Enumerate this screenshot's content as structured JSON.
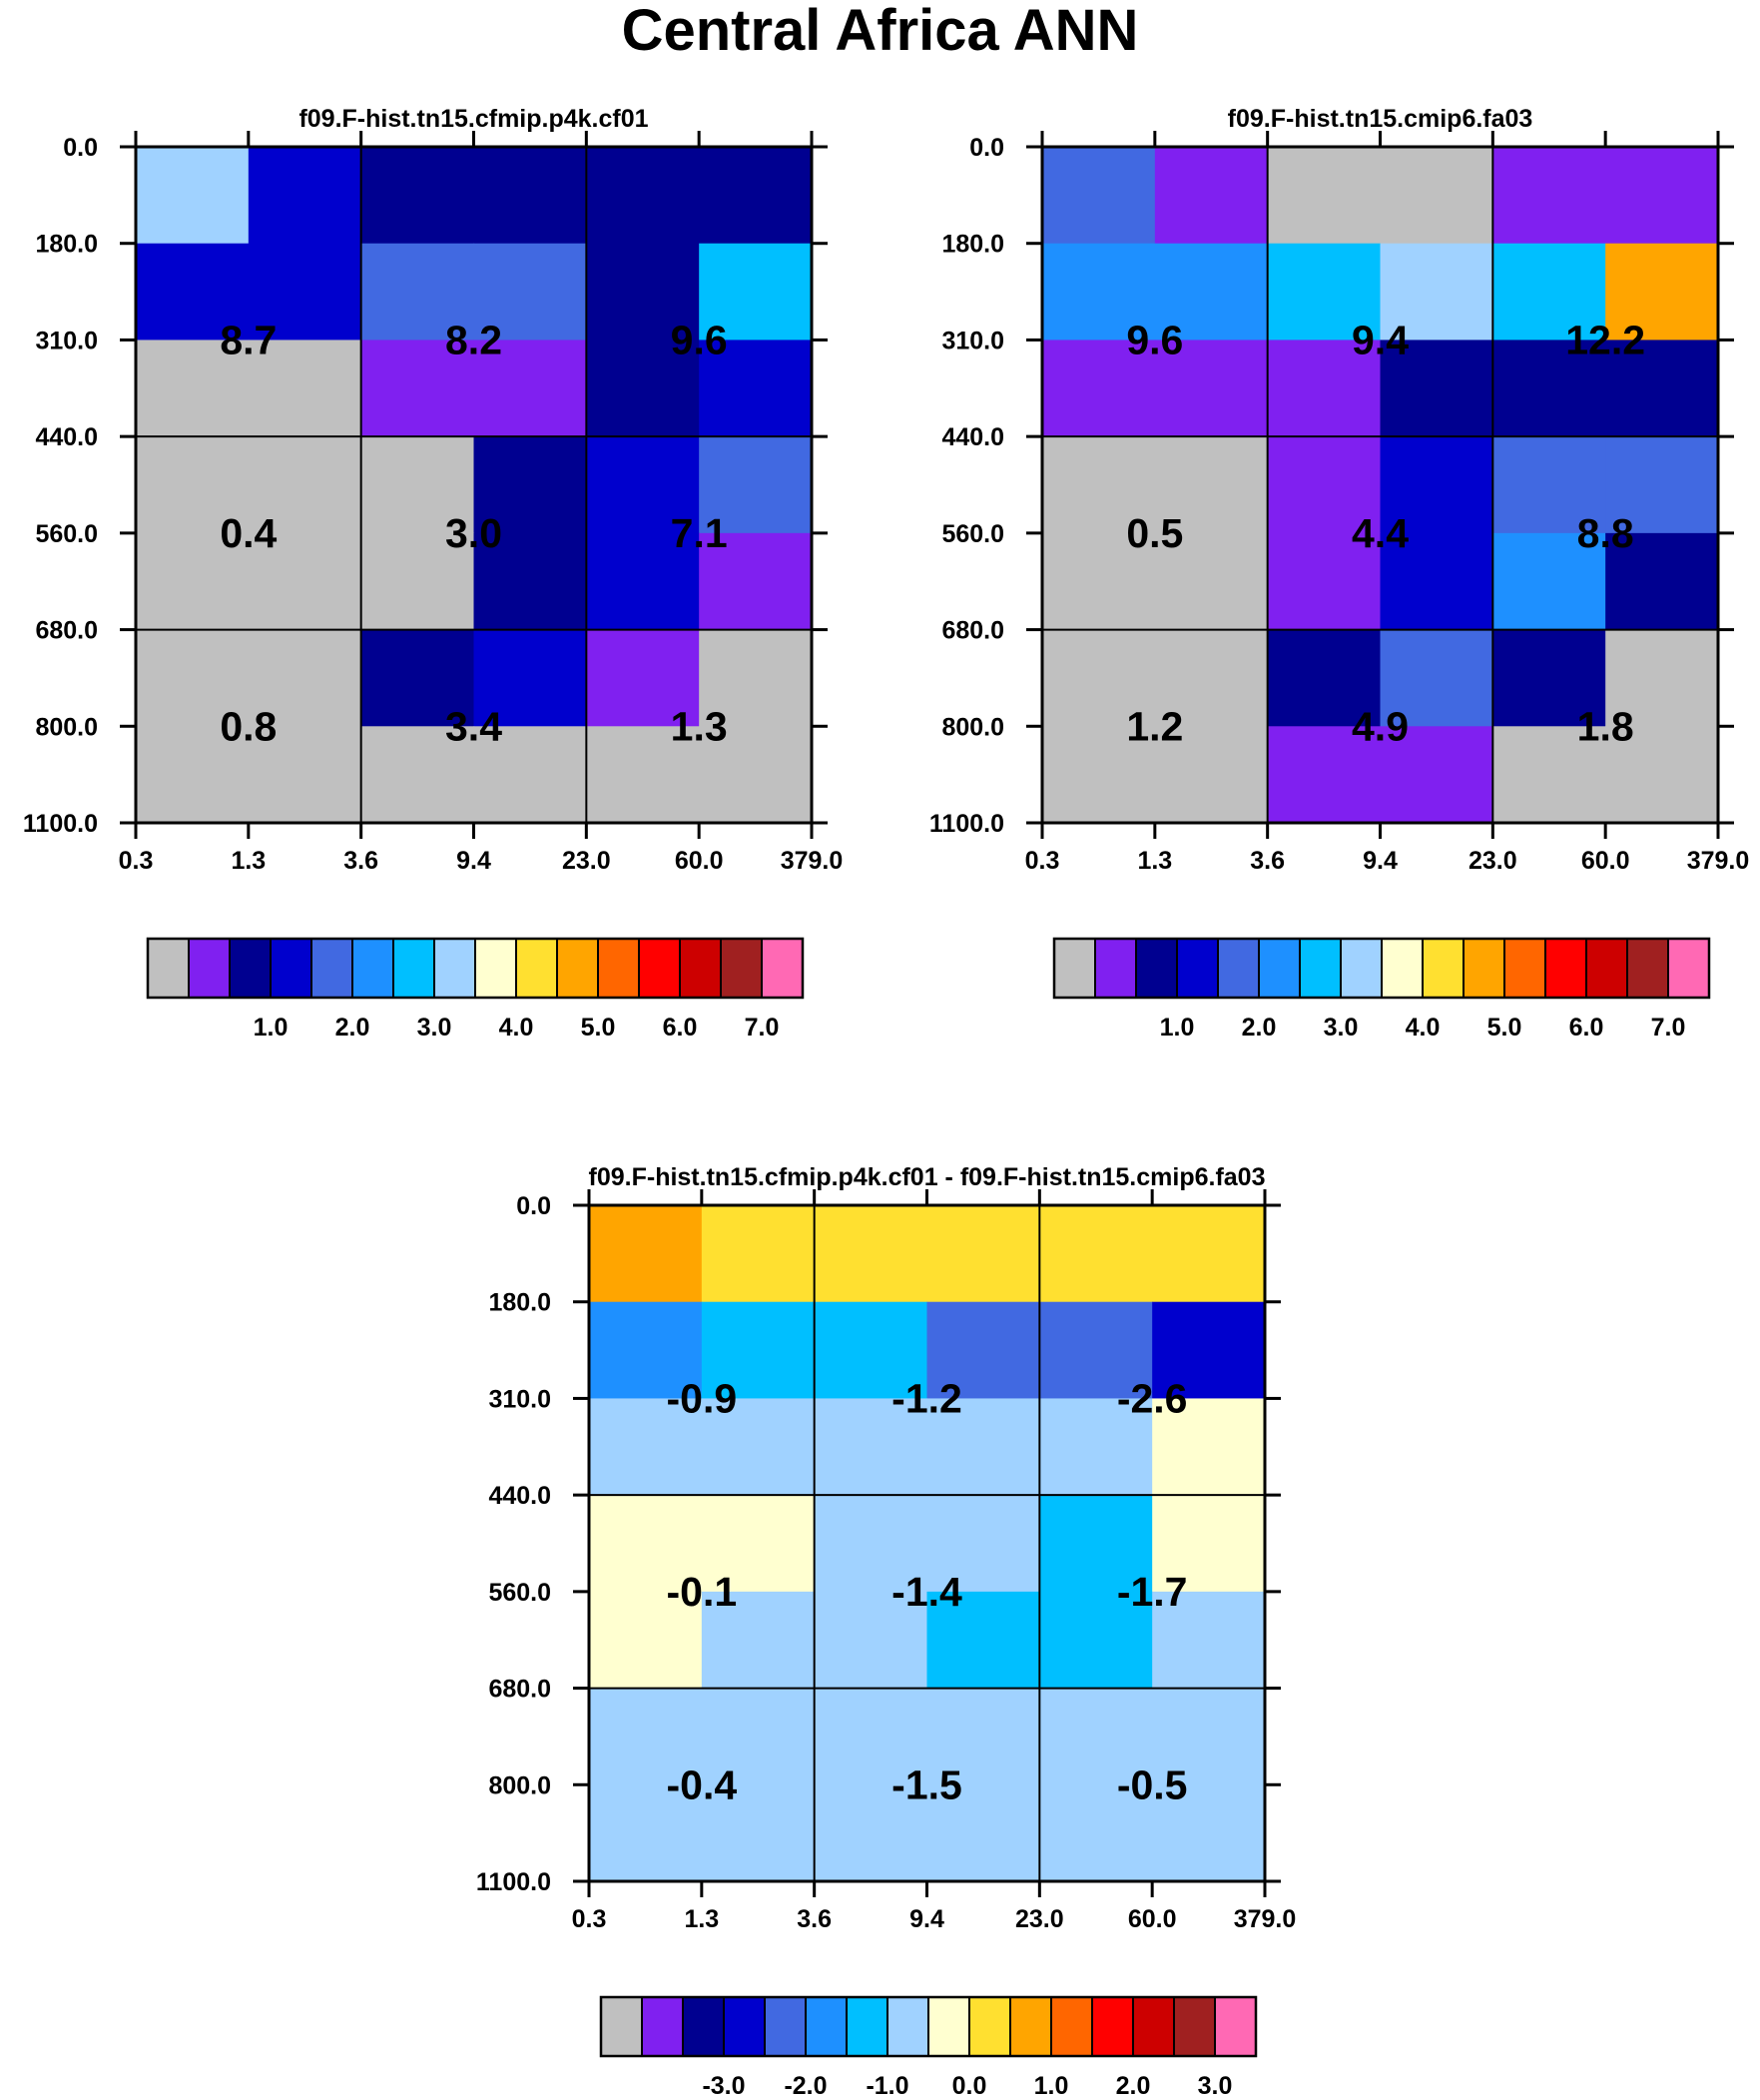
{
  "title": "Central Africa ANN",
  "chart_data": [
    {
      "type": "heatmap",
      "title": "f09.F-hist.tn15.cfmip.p4k.cf01",
      "xlabel": "",
      "ylabel": "",
      "x_ticks": [
        "0.3",
        "1.3",
        "3.6",
        "9.4",
        "23.0",
        "60.0",
        "379.0"
      ],
      "y_ticks": [
        "0.0",
        "180.0",
        "310.0",
        "440.0",
        "560.0",
        "680.0",
        "800.0",
        "1100.0"
      ],
      "fine_cell_color_index": [
        [
          7,
          3,
          2,
          2,
          2,
          2
        ],
        [
          3,
          3,
          4,
          4,
          2,
          6
        ],
        [
          0,
          0,
          1,
          1,
          2,
          3
        ],
        [
          0,
          0,
          0,
          2,
          3,
          4
        ],
        [
          0,
          0,
          0,
          2,
          3,
          1
        ],
        [
          0,
          0,
          2,
          3,
          1,
          0
        ],
        [
          0,
          0,
          0,
          0,
          0,
          0
        ]
      ],
      "box_values": [
        [
          "8.7",
          "8.2",
          "9.6"
        ],
        [
          "0.4",
          "3.0",
          "7.1"
        ],
        [
          "0.8",
          "3.4",
          "1.3"
        ]
      ],
      "colorbar": {
        "colors": [
          "#c0c0c0",
          "#8020f0",
          "#000090",
          "#0000cd",
          "#4169e1",
          "#1e90ff",
          "#00bfff",
          "#a0d2ff",
          "#ffffd0",
          "#ffe030",
          "#ffa500",
          "#ff6600",
          "#ff0000",
          "#cd0000",
          "#a02020",
          "#ff69b4"
        ],
        "labels": [
          "1.0",
          "2.0",
          "3.0",
          "4.0",
          "5.0",
          "6.0",
          "7.0"
        ]
      }
    },
    {
      "type": "heatmap",
      "title": "f09.F-hist.tn15.cmip6.fa03",
      "xlabel": "",
      "ylabel": "",
      "x_ticks": [
        "0.3",
        "1.3",
        "3.6",
        "9.4",
        "23.0",
        "60.0",
        "379.0"
      ],
      "y_ticks": [
        "0.0",
        "180.0",
        "310.0",
        "440.0",
        "560.0",
        "680.0",
        "800.0",
        "1100.0"
      ],
      "fine_cell_color_index": [
        [
          4,
          1,
          0,
          0,
          1,
          1
        ],
        [
          5,
          5,
          6,
          7,
          6,
          10
        ],
        [
          1,
          1,
          1,
          2,
          2,
          2
        ],
        [
          0,
          0,
          1,
          3,
          4,
          4
        ],
        [
          0,
          0,
          1,
          3,
          5,
          2
        ],
        [
          0,
          0,
          2,
          4,
          2,
          0
        ],
        [
          0,
          0,
          1,
          1,
          0,
          0
        ]
      ],
      "box_values": [
        [
          "9.6",
          "9.4",
          "12.2"
        ],
        [
          "0.5",
          "4.4",
          "8.8"
        ],
        [
          "1.2",
          "4.9",
          "1.8"
        ]
      ],
      "colorbar": {
        "colors": [
          "#c0c0c0",
          "#8020f0",
          "#000090",
          "#0000cd",
          "#4169e1",
          "#1e90ff",
          "#00bfff",
          "#a0d2ff",
          "#ffffd0",
          "#ffe030",
          "#ffa500",
          "#ff6600",
          "#ff0000",
          "#cd0000",
          "#a02020",
          "#ff69b4"
        ],
        "labels": [
          "1.0",
          "2.0",
          "3.0",
          "4.0",
          "5.0",
          "6.0",
          "7.0"
        ]
      }
    },
    {
      "type": "heatmap",
      "title": "f09.F-hist.tn15.cfmip.p4k.cf01 - f09.F-hist.tn15.cmip6.fa03",
      "xlabel": "",
      "ylabel": "",
      "x_ticks": [
        "0.3",
        "1.3",
        "3.6",
        "9.4",
        "23.0",
        "60.0",
        "379.0"
      ],
      "y_ticks": [
        "0.0",
        "180.0",
        "310.0",
        "440.0",
        "560.0",
        "680.0",
        "800.0",
        "1100.0"
      ],
      "fine_cell_color_index": [
        [
          10,
          9,
          9,
          9,
          9,
          9
        ],
        [
          5,
          6,
          6,
          4,
          4,
          3
        ],
        [
          7,
          7,
          7,
          7,
          7,
          8
        ],
        [
          8,
          8,
          7,
          7,
          6,
          8
        ],
        [
          8,
          7,
          7,
          6,
          6,
          7
        ],
        [
          7,
          7,
          7,
          7,
          7,
          7
        ],
        [
          7,
          7,
          7,
          7,
          7,
          7
        ]
      ],
      "box_values": [
        [
          "-0.9",
          "-1.2",
          "-2.6"
        ],
        [
          "-0.1",
          "-1.4",
          "-1.7"
        ],
        [
          "-0.4",
          "-1.5",
          "-0.5"
        ]
      ],
      "colorbar": {
        "colors": [
          "#c0c0c0",
          "#8020f0",
          "#000090",
          "#0000cd",
          "#4169e1",
          "#1e90ff",
          "#00bfff",
          "#a0d2ff",
          "#ffffd0",
          "#ffe030",
          "#ffa500",
          "#ff6600",
          "#ff0000",
          "#cd0000",
          "#a02020",
          "#ff69b4"
        ],
        "labels": [
          "-3.0",
          "-2.0",
          "-1.0",
          "0.0",
          "1.0",
          "2.0",
          "3.0"
        ]
      }
    }
  ]
}
